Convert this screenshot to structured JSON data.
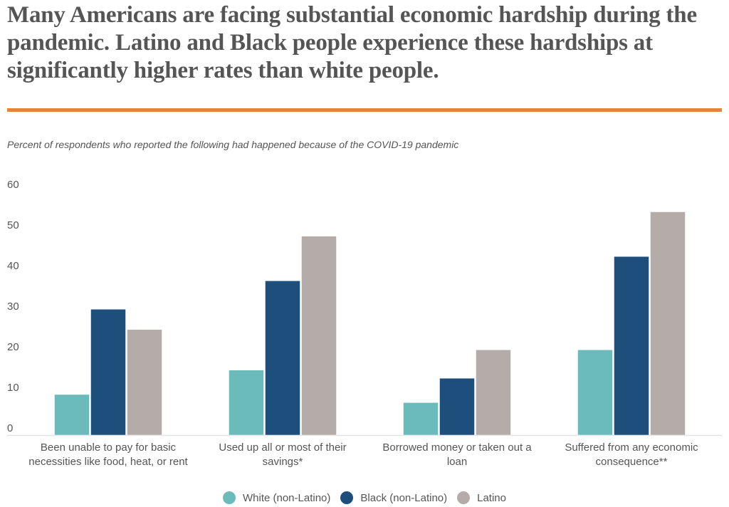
{
  "title": "Many Americans are facing substantial economic hardship during the pandemic. Latino and Black people experience these hardships at significantly higher rates than white people.",
  "subtitle": "Percent of respondents who reported the following had happened because of the COVID-19 pandemic",
  "accent_color": "#e8833a",
  "chart_data": {
    "type": "bar",
    "categories": [
      [
        "Been unable to pay for basic",
        "necessities like food, heat, or rent"
      ],
      [
        "Used up all or most of their",
        "savings*"
      ],
      [
        "Borrowed money or taken out a",
        "loan"
      ],
      [
        "Suffered from any economic",
        "consequence**"
      ]
    ],
    "series": [
      {
        "name": "White (non-Latino)",
        "color": "#6bbbbb",
        "values": [
          10,
          16,
          8,
          21
        ]
      },
      {
        "name": "Black (non-Latino)",
        "color": "#1d4e7c",
        "values": [
          31,
          38,
          14,
          44
        ]
      },
      {
        "name": "Latino",
        "color": "#b4aca9",
        "values": [
          26,
          49,
          21,
          55
        ]
      }
    ],
    "yticks": [
      0,
      10,
      20,
      30,
      40,
      50,
      60
    ],
    "ylim": [
      0,
      60
    ],
    "grid": false,
    "legend": "bottom",
    "xlabel": "",
    "ylabel": ""
  }
}
